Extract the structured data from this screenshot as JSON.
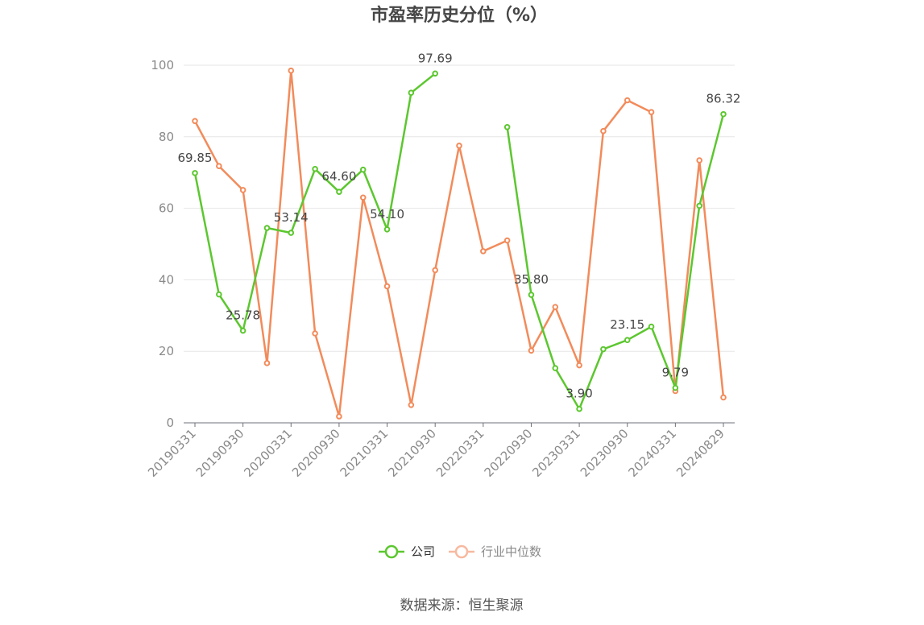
{
  "chart_data": {
    "type": "line",
    "title": "市盈率历史分位（%）",
    "ylim": [
      0,
      100
    ],
    "yticks": [
      0,
      20,
      40,
      60,
      80,
      100
    ],
    "x_tick_labels": [
      "20190331",
      "20190930",
      "20200331",
      "20200930",
      "20210331",
      "20210930",
      "20220331",
      "20220930",
      "20230331",
      "20230930",
      "20240331",
      "20240829"
    ],
    "grid": true,
    "legend_position": "bottom",
    "series": [
      {
        "name": "公司",
        "color": "#5cc72f",
        "values": [
          69.85,
          35.9,
          25.78,
          54.5,
          53.14,
          71.0,
          64.6,
          70.8,
          54.1,
          92.3,
          97.69,
          null,
          null,
          82.7,
          35.8,
          15.3,
          3.9,
          20.6,
          23.15,
          26.9,
          9.79,
          60.7,
          86.32
        ]
      },
      {
        "name": "行业中位数",
        "color": "#f28b5b",
        "values": [
          84.4,
          71.8,
          65.1,
          16.7,
          98.5,
          25.0,
          1.8,
          63.0,
          38.2,
          5.0,
          42.7,
          77.5,
          48.0,
          51.0,
          20.2,
          32.4,
          16.1,
          81.6,
          90.2,
          86.9,
          8.9,
          73.4,
          7.1
        ]
      }
    ],
    "data_labels": [
      {
        "series": 0,
        "index": 0,
        "text": "69.85"
      },
      {
        "series": 0,
        "index": 2,
        "text": "25.78"
      },
      {
        "series": 0,
        "index": 4,
        "text": "53.14"
      },
      {
        "series": 0,
        "index": 6,
        "text": "64.60"
      },
      {
        "series": 0,
        "index": 8,
        "text": "54.10"
      },
      {
        "series": 0,
        "index": 10,
        "text": "97.69"
      },
      {
        "series": 0,
        "index": 14,
        "text": "35.80"
      },
      {
        "series": 0,
        "index": 16,
        "text": "3.90"
      },
      {
        "series": 0,
        "index": 18,
        "text": "23.15"
      },
      {
        "series": 0,
        "index": 20,
        "text": "9.79"
      },
      {
        "series": 0,
        "index": 22,
        "text": "86.32"
      }
    ],
    "source": "数据来源：恒生聚源"
  }
}
